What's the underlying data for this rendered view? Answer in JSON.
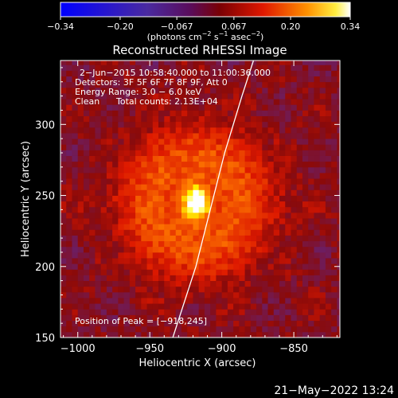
{
  "chart_data": {
    "type": "heatmap",
    "title": "Reconstructed RHESSI Image",
    "xlabel": "Heliocentric X (arcsec)",
    "ylabel": "Heliocentric Y (arcsec)",
    "xlim": [
      -1012,
      -818
    ],
    "ylim": [
      150,
      345
    ],
    "x_ticks": [
      -1000,
      -950,
      -900,
      -850
    ],
    "y_ticks": [
      150,
      200,
      250,
      300
    ],
    "x_tick_labels": [
      "−1000",
      "−950",
      "−900",
      "−850"
    ],
    "y_tick_labels": [
      "150",
      "200",
      "250",
      "300"
    ],
    "colorbar": {
      "ticks": [
        -0.34,
        -0.2,
        -0.067,
        0.067,
        0.2,
        0.34
      ],
      "tick_labels": [
        "−0.34",
        "−0.20",
        "−0.067",
        "0.067",
        "0.20",
        "0.34"
      ],
      "label_main": "(photons cm",
      "label_exp1": "−2",
      "label_mid": " s",
      "label_exp2": "−1",
      "label_end": " asec",
      "label_exp3": "−2",
      "label_close": ")",
      "range": [
        -0.34,
        0.34
      ]
    },
    "annotations": {
      "line1": "2−Jun−2015 10:58:40.000 to 11:00:36.000",
      "line2": "Detectors: 3F 5F 6F 7F 8F 9F, Att 0",
      "line3": "Energy Range: 3.0 − 6.0 keV",
      "line4_a": "Clean",
      "line4_b": "Total counts: 2.13E+04",
      "peak": "Position of Peak = [−918,245]"
    },
    "peak": {
      "x": -918,
      "y": 245,
      "value": 0.34
    },
    "limb_curve": [
      [
        -934,
        150
      ],
      [
        -918,
        200
      ],
      [
        -908,
        240
      ],
      [
        -898,
        280
      ],
      [
        -886,
        320
      ],
      [
        -878,
        345
      ]
    ],
    "timestamp": "21−May−2022 13:24"
  },
  "colors": {
    "background": "#000000",
    "text": "#ffffff",
    "colormap": [
      "#0000ff",
      "#5a2a9a",
      "#8a0a0a",
      "#dd1800",
      "#ff7a00",
      "#ffff00",
      "#ffffff"
    ]
  }
}
